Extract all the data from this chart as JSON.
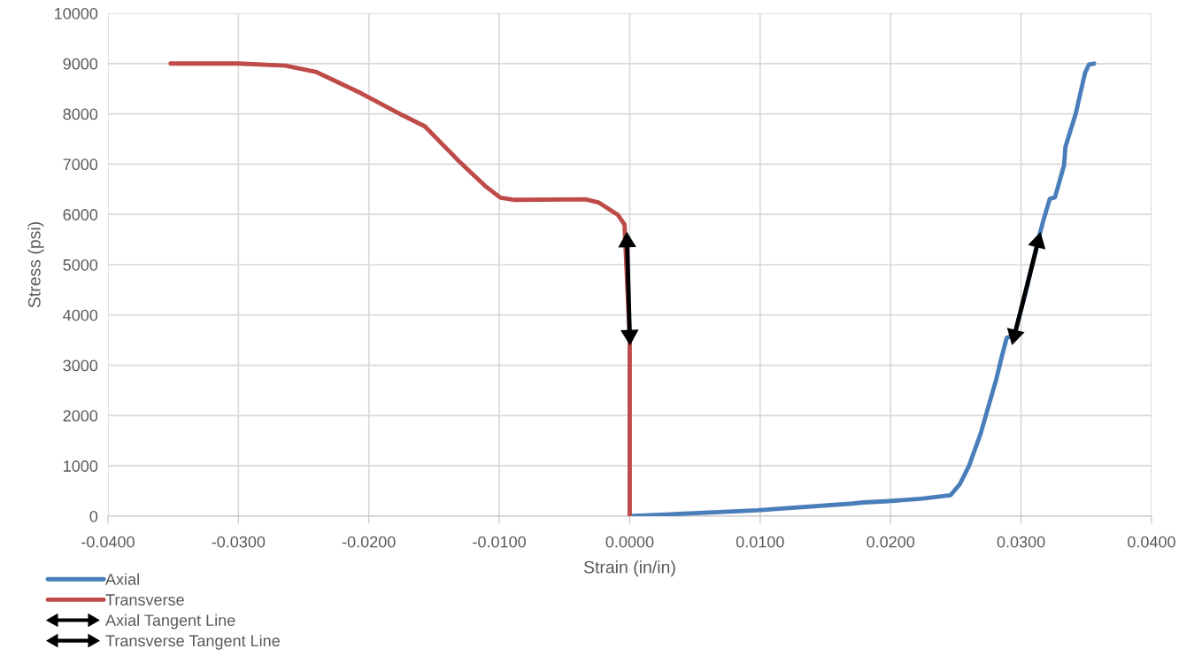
{
  "chart_data": {
    "type": "line",
    "xlabel": "Strain (in/in)",
    "ylabel": "Stress (psi)",
    "xlim": [
      -0.04,
      0.04
    ],
    "ylim": [
      0,
      10000
    ],
    "xticks": [
      {
        "value": -0.04,
        "label": "-0.0400"
      },
      {
        "value": -0.03,
        "label": "-0.0300"
      },
      {
        "value": -0.02,
        "label": "-0.0200"
      },
      {
        "value": -0.01,
        "label": "-0.0100"
      },
      {
        "value": 0,
        "label": "0.0000"
      },
      {
        "value": 0.01,
        "label": "0.0100"
      },
      {
        "value": 0.02,
        "label": "0.0200"
      },
      {
        "value": 0.03,
        "label": "0.0300"
      },
      {
        "value": 0.04,
        "label": "0.0400"
      }
    ],
    "yticks": [
      0,
      1000,
      2000,
      3000,
      4000,
      5000,
      6000,
      7000,
      8000,
      9000,
      10000
    ],
    "grid": true,
    "legend": "bottom left",
    "line_style": "solid",
    "marker": "none",
    "series": [
      {
        "name": "Axial",
        "color": "#4a7ebb",
        "x": [
          0.0,
          0.0098,
          0.0171,
          0.0179,
          0.0196,
          0.0223,
          0.0246,
          0.0253,
          0.026,
          0.0264,
          0.0269,
          0.0273,
          0.0277,
          0.0281,
          0.0285,
          0.0289,
          0.0295,
          0.0304,
          0.0313,
          0.0317,
          0.0322,
          0.0326,
          0.0333,
          0.0334,
          0.0342,
          0.0349,
          0.0352,
          0.0356
        ],
        "values": [
          0,
          115,
          250,
          273,
          295,
          345,
          417,
          633,
          992,
          1280,
          1640,
          2000,
          2360,
          2720,
          3150,
          3545,
          3600,
          4500,
          5480,
          5870,
          6310,
          6340,
          6980,
          7340,
          8010,
          8810,
          8980,
          9000
        ]
      },
      {
        "name": "Transverse",
        "color": "#be4b48",
        "x": [
          -0.0352,
          -0.03,
          -0.0264,
          -0.024,
          -0.0206,
          -0.0174,
          -0.0157,
          -0.0131,
          -0.0111,
          -0.0099,
          -0.0089,
          -0.0034,
          -0.0024,
          -0.0009,
          -0.0004,
          0.0,
          0.0
        ],
        "values": [
          9000,
          9000,
          8960,
          8830,
          8410,
          7970,
          7750,
          7060,
          6570,
          6330,
          6290,
          6300,
          6240,
          5990,
          5800,
          3540,
          0
        ]
      },
      {
        "name": "Axial Tangent Line",
        "color": "#000000",
        "marker": "triangle",
        "x": [
          0.0295,
          0.0313
        ],
        "values": [
          3600,
          5450
        ]
      },
      {
        "name": "Transverse Tangent Line",
        "color": "#000000",
        "marker": "triangle",
        "x": [
          -0.0002,
          0.0
        ],
        "values": [
          5450,
          3600
        ]
      }
    ]
  }
}
